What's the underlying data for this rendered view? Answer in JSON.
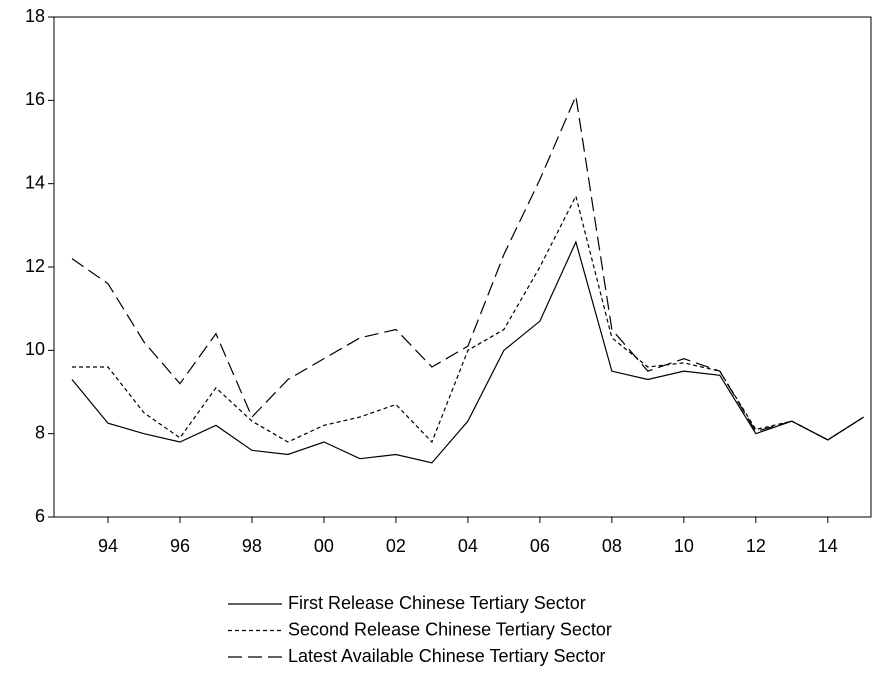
{
  "chart_data": {
    "type": "line",
    "x": [
      1993,
      1994,
      1995,
      1996,
      1997,
      1998,
      1999,
      2000,
      2001,
      2002,
      2003,
      2004,
      2005,
      2006,
      2007,
      2008,
      2009,
      2010,
      2011,
      2012,
      2013,
      2014,
      2015
    ],
    "series": [
      {
        "name": "First Release Chinese Tertiary Sector",
        "color": "#000000",
        "dash": "solid",
        "values": [
          9.3,
          8.25,
          8.0,
          7.8,
          8.2,
          7.6,
          7.5,
          7.8,
          7.4,
          7.5,
          7.3,
          8.3,
          10.0,
          10.7,
          12.6,
          9.5,
          9.3,
          9.5,
          9.4,
          8.0,
          8.3,
          7.85,
          8.4
        ]
      },
      {
        "name": "Second Release Chinese Tertiary Sector",
        "color": "#000000",
        "dash": "short",
        "values": [
          9.6,
          9.6,
          8.5,
          7.9,
          9.1,
          8.3,
          7.8,
          8.2,
          8.4,
          8.7,
          7.8,
          10.0,
          10.5,
          12.0,
          13.7,
          10.3,
          9.6,
          9.7,
          9.5,
          8.1,
          8.3,
          7.85,
          8.4
        ]
      },
      {
        "name": "Latest Available Chinese Tertiary Sector",
        "color": "#000000",
        "dash": "long",
        "values": [
          12.2,
          11.6,
          10.2,
          9.2,
          10.4,
          8.4,
          9.3,
          9.8,
          10.3,
          10.5,
          9.6,
          10.1,
          12.3,
          14.1,
          16.1,
          10.5,
          9.5,
          9.8,
          9.5,
          8.05,
          8.3,
          7.85,
          8.4
        ]
      }
    ],
    "xlim": [
      1992.5,
      2015.2
    ],
    "xticks": [
      {
        "value": 1994,
        "label": "94"
      },
      {
        "value": 1996,
        "label": "96"
      },
      {
        "value": 1998,
        "label": "98"
      },
      {
        "value": 2000,
        "label": "00"
      },
      {
        "value": 2002,
        "label": "02"
      },
      {
        "value": 2004,
        "label": "04"
      },
      {
        "value": 2006,
        "label": "06"
      },
      {
        "value": 2008,
        "label": "08"
      },
      {
        "value": 2010,
        "label": "10"
      },
      {
        "value": 2012,
        "label": "12"
      },
      {
        "value": 2014,
        "label": "14"
      }
    ],
    "ylim": [
      6,
      18
    ],
    "yticks": [
      6,
      8,
      10,
      12,
      14,
      16,
      18
    ],
    "grid": false
  }
}
